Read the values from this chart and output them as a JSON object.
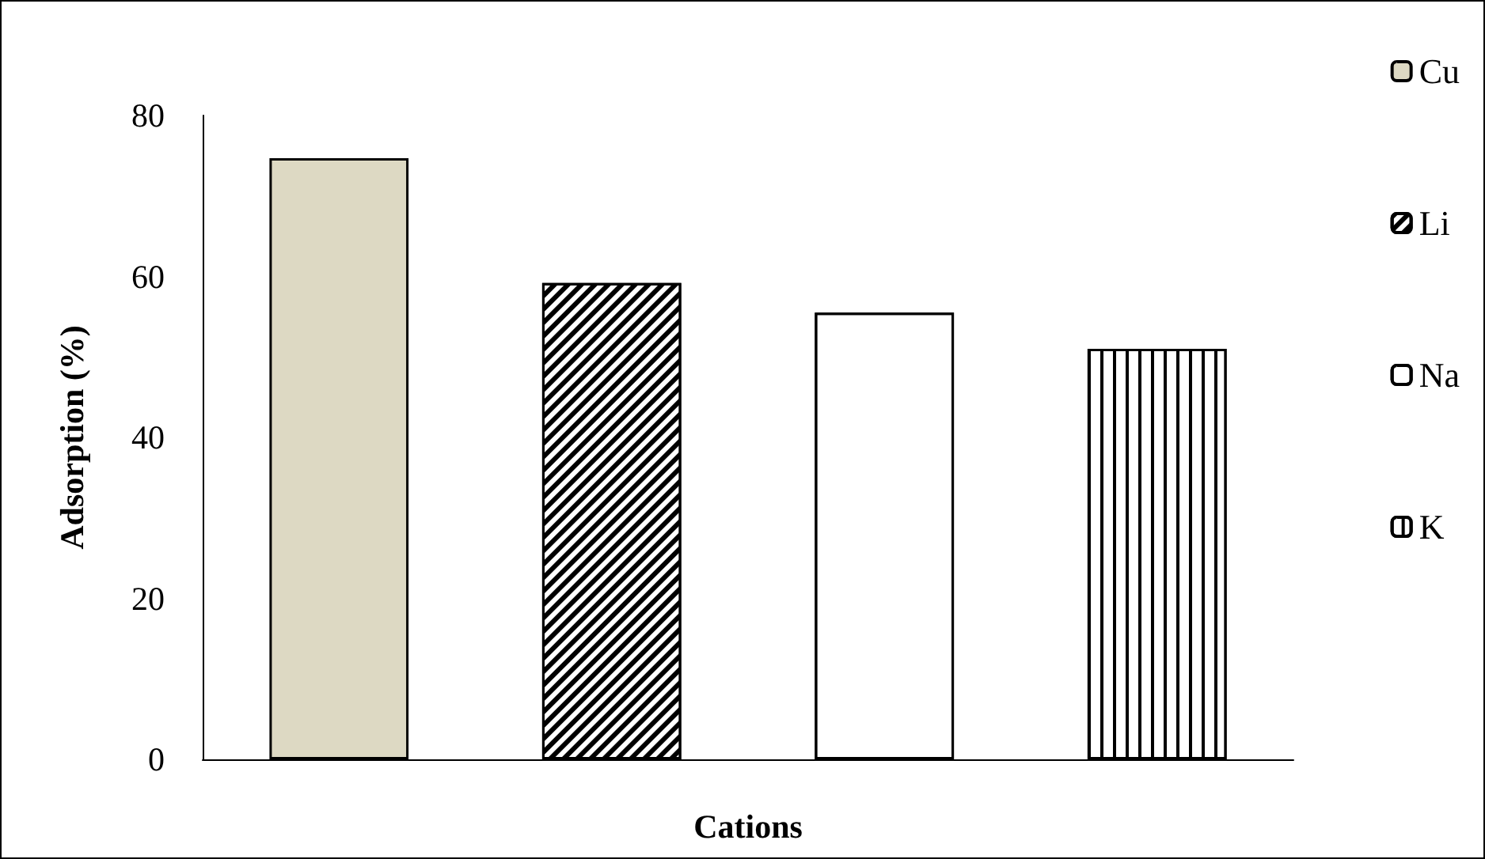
{
  "chart_data": {
    "type": "bar",
    "xlabel": "Cations",
    "ylabel": "Adsorption (%)",
    "categories": [
      null,
      null,
      null,
      null
    ],
    "series": [
      {
        "name": "Cu",
        "color": "#ddd9c3",
        "values": [
          74.7,
          null,
          null,
          null
        ]
      },
      {
        "name": "Li",
        "color": "#000000",
        "values": [
          null,
          59.2,
          null,
          null
        ]
      },
      {
        "name": "Na",
        "color": "#000000",
        "values": [
          null,
          null,
          55.5,
          null
        ]
      },
      {
        "name": "K",
        "color": "#000000",
        "values": [
          null,
          null,
          null,
          51.0
        ]
      }
    ],
    "stacked": true,
    "ylim": [
      0,
      80
    ],
    "yticks": [
      0,
      20,
      40,
      60,
      80
    ],
    "grid": false,
    "legend": "right"
  }
}
